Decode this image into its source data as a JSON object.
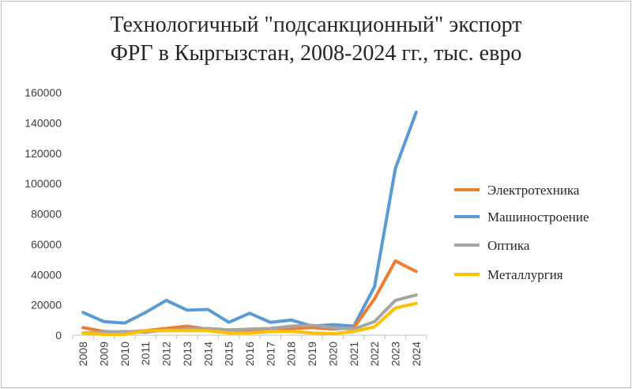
{
  "chart_data": {
    "type": "line",
    "title_line1": "Технологичный \"подсанкционный\"  экспорт",
    "title_line2": "ФРГ в Кыргызстан,  2008-2024  гг., тыс. евро",
    "xlabel": "",
    "ylabel": "",
    "ylim": [
      0,
      160000
    ],
    "yticks": [
      "0",
      "20000",
      "40000",
      "60000",
      "80000",
      "100000",
      "120000",
      "140000",
      "160000"
    ],
    "categories": [
      "2008",
      "2009",
      "2010",
      "2011",
      "2012",
      "2013",
      "2014",
      "2015",
      "2016",
      "2017",
      "2018",
      "2019",
      "2020",
      "2021",
      "2022",
      "2023",
      "2024"
    ],
    "grid": false,
    "legend_position": "right",
    "series": [
      {
        "name": "Электротехника",
        "color": "#ed7d31",
        "values": [
          5000,
          2500,
          2000,
          3000,
          4500,
          6000,
          4000,
          3500,
          3000,
          3500,
          4500,
          5000,
          4000,
          5000,
          24000,
          49000,
          42000
        ]
      },
      {
        "name": "Машиностроение",
        "color": "#5b9bd5",
        "values": [
          15000,
          9000,
          8000,
          15000,
          23000,
          16500,
          17000,
          8500,
          14500,
          8500,
          10000,
          6000,
          7000,
          6000,
          32000,
          110000,
          147000
        ]
      },
      {
        "name": "Оптика",
        "color": "#a5a5a5",
        "values": [
          1500,
          2000,
          2500,
          2000,
          3500,
          4000,
          4500,
          3500,
          4000,
          4500,
          6000,
          6500,
          5000,
          4000,
          9000,
          23000,
          26500
        ]
      },
      {
        "name": "Металлургия",
        "color": "#ffc000",
        "values": [
          1500,
          500,
          500,
          3000,
          3000,
          3000,
          3000,
          1500,
          1500,
          2500,
          2500,
          1500,
          1000,
          2500,
          5500,
          18000,
          21000
        ]
      }
    ]
  }
}
